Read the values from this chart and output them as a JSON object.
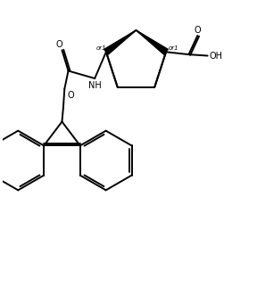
{
  "bg_color": "#ffffff",
  "line_color": "#000000",
  "lw": 1.4,
  "figsize": [
    2.88,
    3.22
  ],
  "dpi": 100,
  "or1": "or1",
  "nh": "NH",
  "oh": "OH",
  "o": "O"
}
